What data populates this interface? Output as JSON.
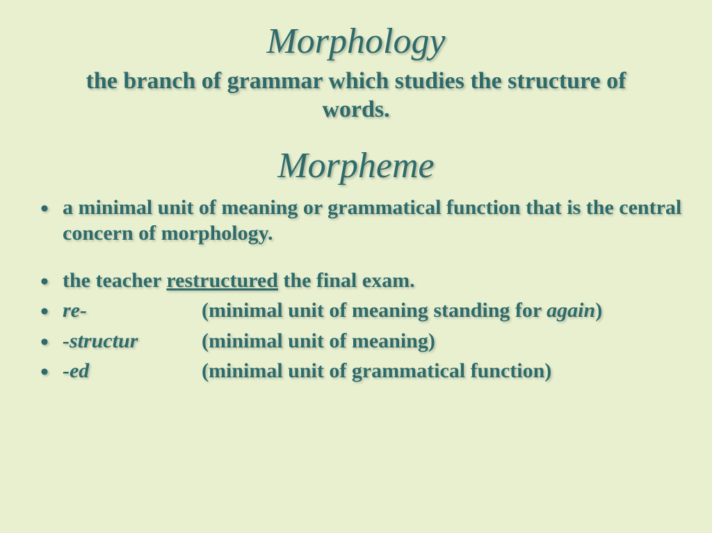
{
  "title1": "Morphology",
  "subtitle": "the branch of grammar which studies the structure of words.",
  "title2": "Morpheme",
  "bullets": {
    "b1": "a minimal unit of meaning or grammatical function that is the central concern of morphology.",
    "b2_pre": "the teacher ",
    "b2_under": "restructured",
    "b2_post": " the final exam.",
    "b3_term": "re-",
    "b3_desc_pre": "(minimal unit of meaning standing for ",
    "b3_desc_ital": "again",
    "b3_desc_post": ")",
    "b4_term": "-structur",
    "b4_desc": "(minimal unit of meaning)",
    "b5_term": "-ed",
    "b5_desc": "(minimal unit of grammatical function)"
  },
  "colors": {
    "background": "#e8f0d0",
    "text": "#2d6b6b"
  }
}
